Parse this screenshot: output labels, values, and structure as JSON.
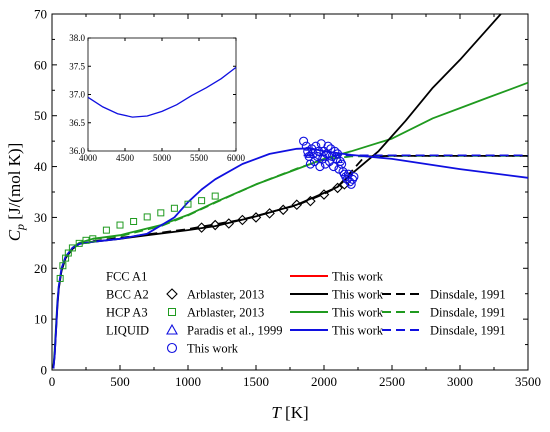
{
  "chart_data": {
    "type": "line",
    "title": "",
    "xlabel": {
      "symbol": "T",
      "unit": " [K]"
    },
    "ylabel": {
      "symbol": "C",
      "subscript": "p",
      "unit": " [J/(mol K)]"
    },
    "xlim": [
      0,
      3500
    ],
    "ylim": [
      0,
      70
    ],
    "x_ticks": [
      "0",
      "500",
      "1000",
      "1500",
      "2000",
      "2500",
      "3000",
      "3500"
    ],
    "y_ticks": [
      "0",
      "10",
      "20",
      "30",
      "40",
      "50",
      "60",
      "70"
    ],
    "colors": {
      "fcc": "#ff0000",
      "bcc": "#000000",
      "hcp": "#1f9a1f",
      "liquid": "#1010e0"
    },
    "legend": {
      "placement": "bottom",
      "rows": [
        {
          "phase": "FCC A1",
          "exp_label": "",
          "exp_marker": "none",
          "model_label": "This work",
          "model_color": "#ff0000",
          "ref_label": "",
          "ref_color": ""
        },
        {
          "phase": "BCC A2",
          "exp_label": "Arblaster, 2013",
          "exp_marker": "diamond",
          "exp_color": "#000000",
          "model_label": "This work",
          "model_color": "#000000",
          "ref_label": "Dinsdale, 1991",
          "ref_color": "#000000"
        },
        {
          "phase": "HCP A3",
          "exp_label": "Arblaster, 2013",
          "exp_marker": "square",
          "exp_color": "#1f9a1f",
          "model_label": "This work",
          "model_color": "#1f9a1f",
          "ref_label": "Dinsdale, 1991",
          "ref_color": "#1f9a1f"
        },
        {
          "phase": "LIQUID",
          "exp_label": "Paradis et al., 1999",
          "exp_marker": "triangle",
          "exp_color": "#1010e0",
          "model_label": "This work",
          "model_color": "#1010e0",
          "ref_label": "Dinsdale, 1991",
          "ref_color": "#1010e0"
        },
        {
          "phase": "",
          "exp_label": "This work",
          "exp_marker": "circle",
          "exp_color": "#1010e0",
          "model_label": "",
          "model_color": "",
          "ref_label": "",
          "ref_color": ""
        }
      ]
    },
    "series": [
      {
        "phase": "HCP A3",
        "source": "This work",
        "style": "solid",
        "color": "#1f9a1f",
        "points": [
          [
            10,
            0.5
          ],
          [
            20,
            4
          ],
          [
            30,
            9
          ],
          [
            40,
            13.5
          ],
          [
            50,
            16.5
          ],
          [
            70,
            19.5
          ],
          [
            100,
            22
          ],
          [
            150,
            24
          ],
          [
            200,
            25
          ],
          [
            300,
            25.8
          ],
          [
            500,
            26.5
          ],
          [
            800,
            28.5
          ],
          [
            1000,
            30.5
          ],
          [
            1200,
            33
          ],
          [
            1500,
            36.5
          ],
          [
            1800,
            39.5
          ],
          [
            2000,
            41.5
          ],
          [
            2200,
            43
          ],
          [
            2500,
            45.5
          ],
          [
            2800,
            49.5
          ],
          [
            3000,
            51.5
          ],
          [
            3200,
            53.5
          ],
          [
            3500,
            56.5
          ]
        ]
      },
      {
        "phase": "HCP A3",
        "source": "Dinsdale, 1991",
        "style": "dashed",
        "color": "#1f9a1f",
        "points": [
          [
            300,
            25.8
          ],
          [
            500,
            26.3
          ],
          [
            800,
            28.3
          ],
          [
            1000,
            30.4
          ],
          [
            1200,
            32.9
          ],
          [
            1500,
            36.5
          ],
          [
            1800,
            39.6
          ],
          [
            2000,
            41.4
          ],
          [
            2200,
            42
          ],
          [
            2500,
            42.1
          ],
          [
            3000,
            42.1
          ],
          [
            3500,
            42.1
          ]
        ]
      },
      {
        "phase": "BCC A2",
        "source": "This work",
        "style": "solid",
        "color": "#000000",
        "points": [
          [
            10,
            0.3
          ],
          [
            20,
            3
          ],
          [
            30,
            8
          ],
          [
            40,
            12.5
          ],
          [
            50,
            16
          ],
          [
            70,
            19.5
          ],
          [
            100,
            22
          ],
          [
            150,
            23.8
          ],
          [
            200,
            24.8
          ],
          [
            300,
            25.2
          ],
          [
            500,
            25.8
          ],
          [
            700,
            26.5
          ],
          [
            1000,
            27.5
          ],
          [
            1200,
            28.3
          ],
          [
            1500,
            30.2
          ],
          [
            1800,
            32.5
          ],
          [
            2000,
            34.8
          ],
          [
            2100,
            36
          ],
          [
            2200,
            38.5
          ],
          [
            2400,
            43
          ],
          [
            2600,
            49
          ],
          [
            2800,
            55.5
          ],
          [
            3000,
            61
          ],
          [
            3200,
            67
          ],
          [
            3300,
            70
          ]
        ]
      },
      {
        "phase": "BCC A2",
        "source": "Dinsdale, 1991",
        "style": "dashed",
        "color": "#000000",
        "points": [
          [
            300,
            25.3
          ],
          [
            600,
            26.3
          ],
          [
            1000,
            27.7
          ],
          [
            1400,
            29.6
          ],
          [
            1800,
            32.4
          ],
          [
            2000,
            34.6
          ],
          [
            2100,
            36
          ],
          [
            2200,
            39
          ],
          [
            2300,
            42
          ],
          [
            2500,
            42.1
          ],
          [
            3000,
            42.1
          ],
          [
            3500,
            42.1
          ]
        ]
      },
      {
        "phase": "LIQUID",
        "source": "This work",
        "style": "solid",
        "color": "#1010e0",
        "points": [
          [
            10,
            0.3
          ],
          [
            20,
            3
          ],
          [
            30,
            8
          ],
          [
            40,
            13
          ],
          [
            50,
            16.5
          ],
          [
            70,
            20
          ],
          [
            100,
            22.3
          ],
          [
            150,
            24
          ],
          [
            200,
            24.8
          ],
          [
            300,
            25.2
          ],
          [
            500,
            25.8
          ],
          [
            700,
            26.8
          ],
          [
            900,
            30
          ],
          [
            1000,
            33
          ],
          [
            1100,
            35.5
          ],
          [
            1200,
            37.5
          ],
          [
            1400,
            40.5
          ],
          [
            1600,
            42.5
          ],
          [
            1800,
            43.5
          ],
          [
            1900,
            43.6
          ],
          [
            2000,
            43
          ],
          [
            2200,
            42.3
          ],
          [
            2500,
            41.5
          ],
          [
            3000,
            39.5
          ],
          [
            3500,
            37.8
          ]
        ]
      },
      {
        "phase": "LIQUID",
        "source": "Dinsdale, 1991",
        "style": "dashed",
        "color": "#1010e0",
        "points": [
          [
            1850,
            42.2
          ],
          [
            2000,
            42.2
          ],
          [
            2500,
            42.2
          ],
          [
            3000,
            42.2
          ],
          [
            3500,
            42.2
          ]
        ]
      }
    ],
    "scatter": [
      {
        "phase": "BCC A2",
        "source": "Arblaster, 2013",
        "marker": "diamond",
        "color": "#000000",
        "points": [
          [
            1100,
            28
          ],
          [
            1200,
            28.5
          ],
          [
            1300,
            28.8
          ],
          [
            1400,
            29.5
          ],
          [
            1500,
            30
          ],
          [
            1600,
            30.8
          ],
          [
            1700,
            31.5
          ],
          [
            1800,
            32.5
          ],
          [
            1900,
            33.2
          ],
          [
            2000,
            34.5
          ],
          [
            2100,
            35.8
          ],
          [
            2150,
            36.5
          ]
        ]
      },
      {
        "phase": "HCP A3",
        "source": "Arblaster, 2013",
        "marker": "square",
        "color": "#1f9a1f",
        "points": [
          [
            60,
            18
          ],
          [
            80,
            20.5
          ],
          [
            100,
            22
          ],
          [
            120,
            23
          ],
          [
            150,
            24
          ],
          [
            200,
            24.9
          ],
          [
            250,
            25.5
          ],
          [
            300,
            25.8
          ],
          [
            400,
            27.5
          ],
          [
            500,
            28.5
          ],
          [
            600,
            29.2
          ],
          [
            700,
            30.1
          ],
          [
            800,
            30.9
          ],
          [
            900,
            31.8
          ],
          [
            1000,
            32.6
          ],
          [
            1100,
            33.3
          ],
          [
            1200,
            34.2
          ]
        ]
      },
      {
        "phase": "LIQUID",
        "source": "Paradis et al., 1999",
        "marker": "triangle",
        "color": "#1010e0",
        "points": [
          [
            1900,
            42.5
          ],
          [
            2000,
            42
          ],
          [
            2100,
            41.5
          ]
        ]
      },
      {
        "phase": "LIQUID",
        "source": "This work",
        "marker": "circle",
        "color": "#1010e0",
        "points": [
          [
            1850,
            45
          ],
          [
            1870,
            44
          ],
          [
            1880,
            43
          ],
          [
            1890,
            42
          ],
          [
            1900,
            40.5
          ],
          [
            1910,
            43.5
          ],
          [
            1920,
            42.5
          ],
          [
            1930,
            41
          ],
          [
            1940,
            44
          ],
          [
            1950,
            42
          ],
          [
            1960,
            43
          ],
          [
            1970,
            40
          ],
          [
            1980,
            44.5
          ],
          [
            1990,
            41.5
          ],
          [
            2000,
            43
          ],
          [
            2010,
            40.5
          ],
          [
            2020,
            42.5
          ],
          [
            2030,
            44
          ],
          [
            2040,
            41
          ],
          [
            2050,
            43.5
          ],
          [
            2060,
            42
          ],
          [
            2070,
            40
          ],
          [
            2080,
            43
          ],
          [
            2090,
            41.5
          ],
          [
            2100,
            42.5
          ],
          [
            2110,
            39.5
          ],
          [
            2120,
            41
          ],
          [
            2130,
            40.5
          ],
          [
            2140,
            39
          ],
          [
            2150,
            38.5
          ],
          [
            2160,
            38
          ],
          [
            2170,
            37.5
          ],
          [
            2180,
            38.5
          ],
          [
            2190,
            37
          ],
          [
            2200,
            36.5
          ],
          [
            2210,
            37.5
          ],
          [
            2220,
            38
          ]
        ]
      }
    ],
    "inset": {
      "xlim": [
        4000,
        6000
      ],
      "ylim": [
        36.0,
        38.0
      ],
      "x_ticks": [
        "4000",
        "4500",
        "5000",
        "5500",
        "6000"
      ],
      "y_ticks": [
        "36.0",
        "36.5",
        "37.0",
        "37.5",
        "38.0"
      ],
      "color": "#1010e0",
      "points": [
        [
          4000,
          36.95
        ],
        [
          4200,
          36.78
        ],
        [
          4400,
          36.66
        ],
        [
          4600,
          36.6
        ],
        [
          4800,
          36.62
        ],
        [
          5000,
          36.7
        ],
        [
          5200,
          36.82
        ],
        [
          5400,
          36.98
        ],
        [
          5600,
          37.12
        ],
        [
          5800,
          37.28
        ],
        [
          6000,
          37.48
        ]
      ]
    }
  }
}
